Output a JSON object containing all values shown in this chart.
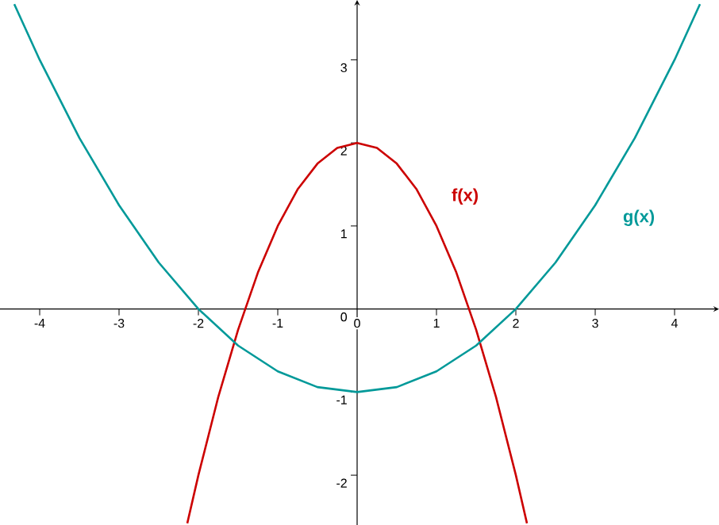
{
  "chart_data": {
    "type": "line",
    "xlim": [
      -4.5,
      4.56
    ],
    "ylim": [
      -2.6,
      3.72
    ],
    "xticks": [
      -4,
      -3,
      -2,
      -1,
      0,
      1,
      2,
      3,
      4
    ],
    "yticks": [
      -2,
      -1,
      0,
      1,
      2,
      3
    ],
    "grid": false,
    "marker": "none",
    "line_style": "solid",
    "series": [
      {
        "name": "f(x)",
        "color": "#cc0000",
        "x": [
          -2.14,
          -2,
          -1.75,
          -1.5,
          -1.25,
          -1,
          -0.75,
          -0.5,
          -0.25,
          0,
          0.25,
          0.5,
          0.75,
          1,
          1.25,
          1.5,
          1.75,
          2,
          2.14
        ],
        "values": [
          -2.58,
          -2,
          -1.06,
          -0.25,
          0.44,
          1,
          1.44,
          1.75,
          1.94,
          2,
          1.94,
          1.75,
          1.44,
          1,
          0.44,
          -0.25,
          -1.06,
          -2,
          -2.58
        ]
      },
      {
        "name": "g(x)",
        "color": "#009999",
        "x": [
          -4.32,
          -4,
          -3.5,
          -3,
          -2.5,
          -2,
          -1.5,
          -1,
          -0.5,
          0,
          0.5,
          1,
          1.5,
          2,
          2.5,
          3,
          3.5,
          4,
          4.32
        ],
        "values": [
          3.67,
          3,
          2.06,
          1.25,
          0.56,
          0,
          -0.44,
          -0.75,
          -0.94,
          -1,
          -0.94,
          -0.75,
          -0.44,
          0,
          0.56,
          1.25,
          2.06,
          3,
          3.67
        ]
      }
    ]
  }
}
